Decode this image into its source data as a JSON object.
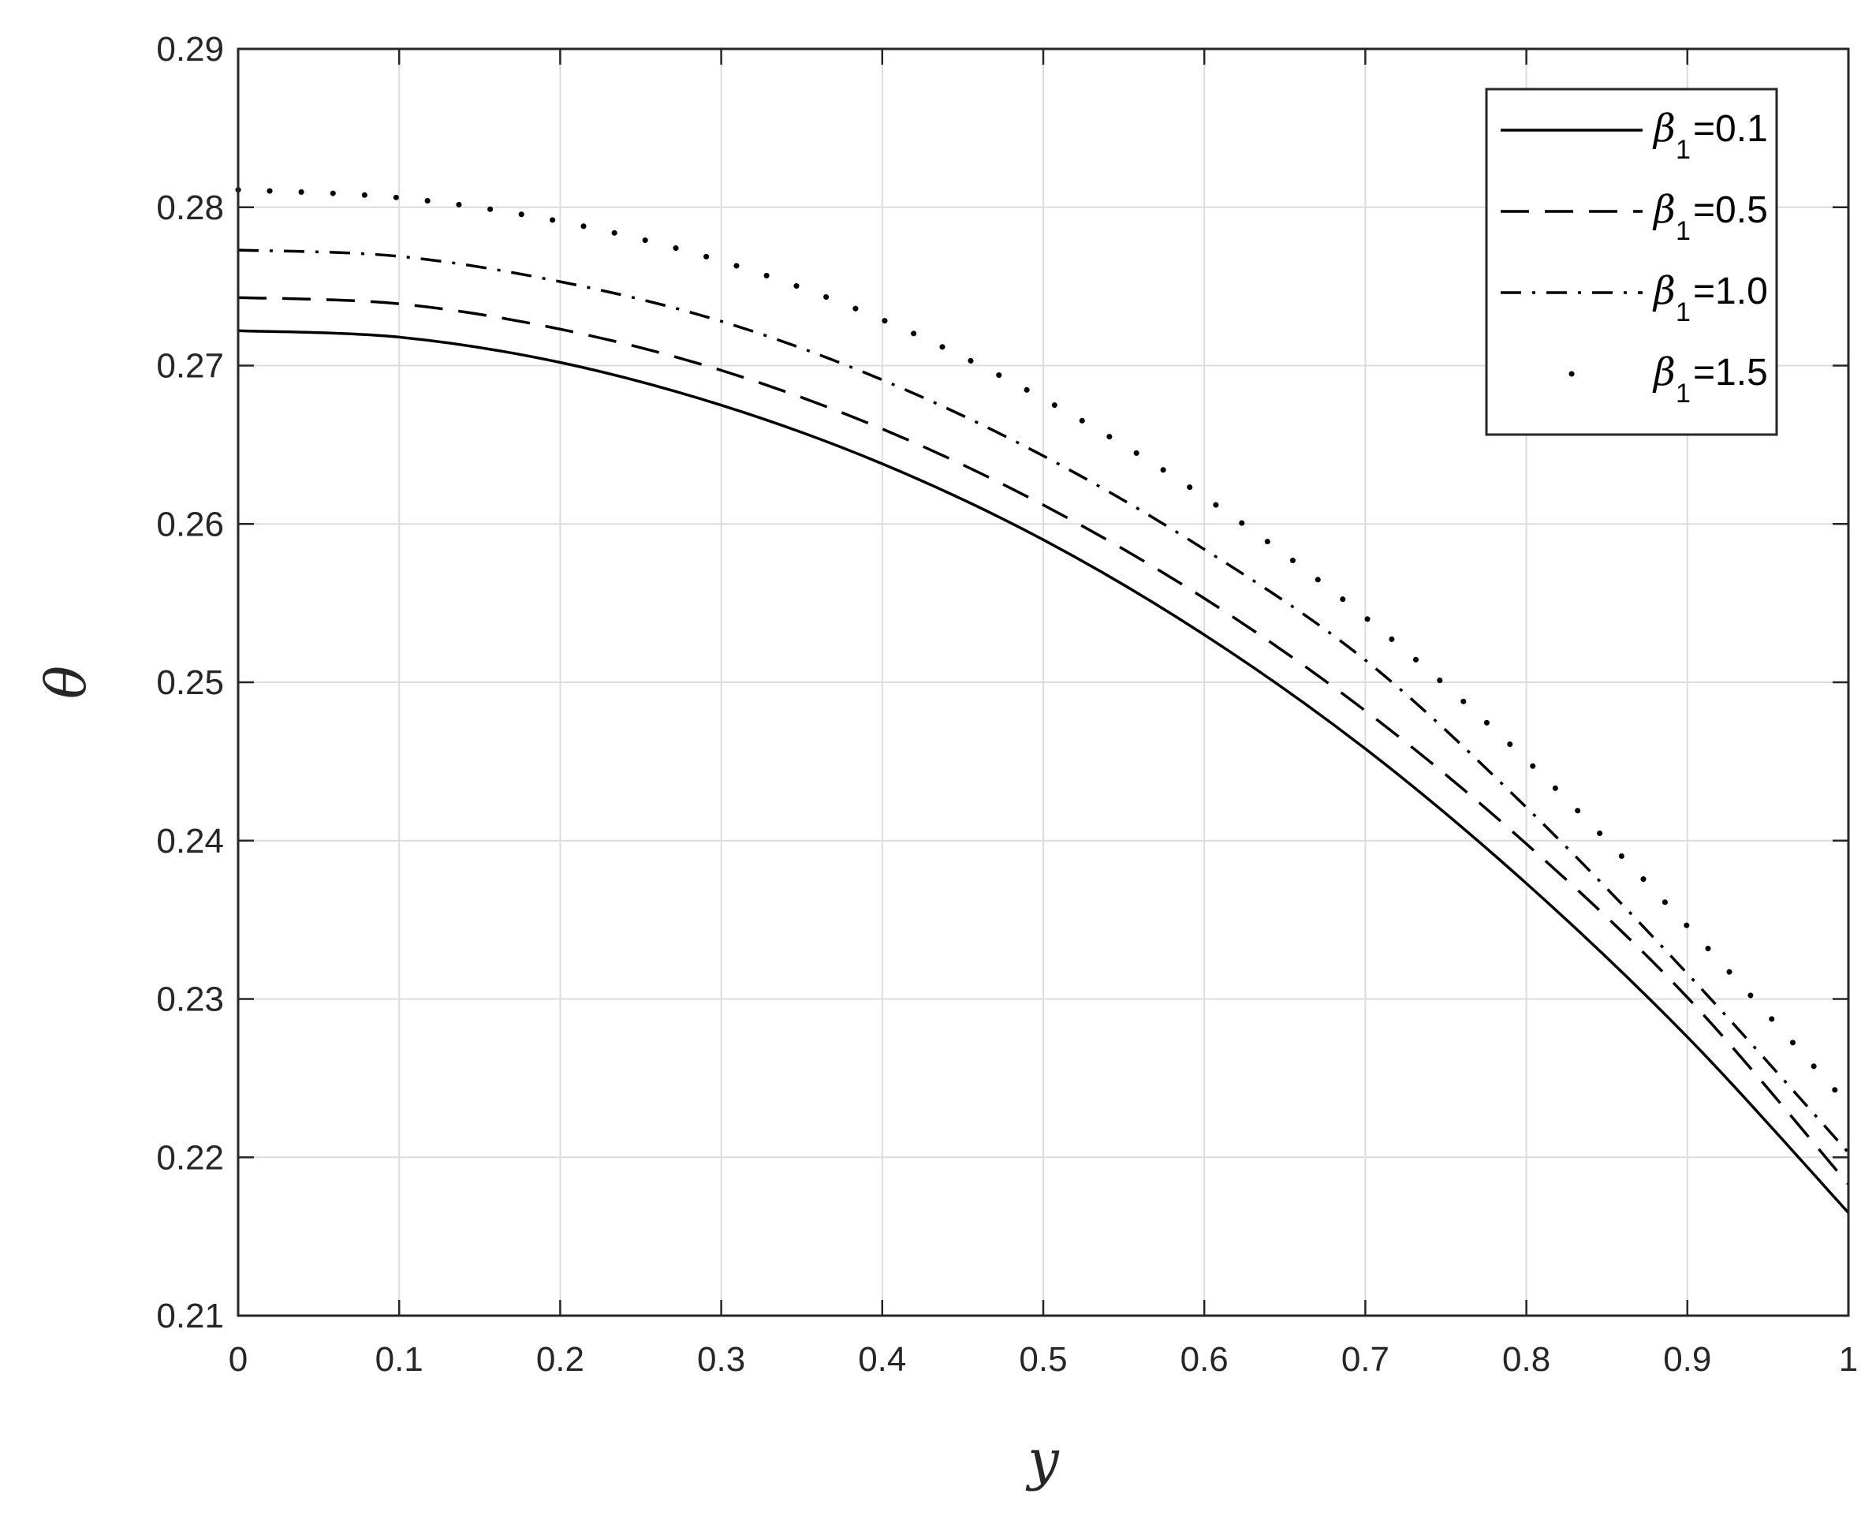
{
  "chart_data": {
    "type": "line",
    "title": "",
    "xlabel": "y",
    "ylabel": "θ",
    "xlim": [
      0,
      1
    ],
    "ylim": [
      0.21,
      0.29
    ],
    "grid": true,
    "legend_position": "top-right",
    "xticks": [
      0,
      0.1,
      0.2,
      0.3,
      0.4,
      0.5,
      0.6,
      0.7,
      0.8,
      0.9,
      1
    ],
    "xtick_labels": [
      "0",
      "0.1",
      "0.2",
      "0.3",
      "0.4",
      "0.5",
      "0.6",
      "0.7",
      "0.8",
      "0.9",
      "1"
    ],
    "yticks": [
      0.21,
      0.22,
      0.23,
      0.24,
      0.25,
      0.26,
      0.27,
      0.28,
      0.29
    ],
    "ytick_labels": [
      "0.21",
      "0.22",
      "0.23",
      "0.24",
      "0.25",
      "0.26",
      "0.27",
      "0.28",
      "0.29"
    ],
    "x": [
      0,
      0.1,
      0.2,
      0.3,
      0.4,
      0.5,
      0.6,
      0.7,
      0.8,
      0.9,
      1.0
    ],
    "series": [
      {
        "legend_symbol": "β",
        "legend_subscript": "1",
        "legend_value": "=0.1",
        "style": "solid",
        "values": [
          0.2722,
          0.2718,
          0.2702,
          0.2675,
          0.2638,
          0.259,
          0.253,
          0.2458,
          0.2373,
          0.2276,
          0.2165
        ]
      },
      {
        "legend_symbol": "β",
        "legend_subscript": "1",
        "legend_value": "=0.5",
        "style": "dashed",
        "values": [
          0.2743,
          0.2739,
          0.2723,
          0.2697,
          0.266,
          0.2612,
          0.2553,
          0.2482,
          0.2398,
          0.2301,
          0.2183
        ]
      },
      {
        "legend_symbol": "β",
        "legend_subscript": "1",
        "legend_value": "=1.0",
        "style": "dashdot",
        "values": [
          0.2773,
          0.2769,
          0.2753,
          0.2728,
          0.2691,
          0.2643,
          0.2584,
          0.2514,
          0.2421,
          0.2316,
          0.2203
        ]
      },
      {
        "legend_symbol": "β",
        "legend_subscript": "1",
        "legend_value": "=1.5",
        "style": "dotted",
        "values": [
          0.2811,
          0.2806,
          0.2791,
          0.2766,
          0.2729,
          0.2679,
          0.2617,
          0.2541,
          0.2451,
          0.2346,
          0.2233
        ]
      }
    ]
  }
}
